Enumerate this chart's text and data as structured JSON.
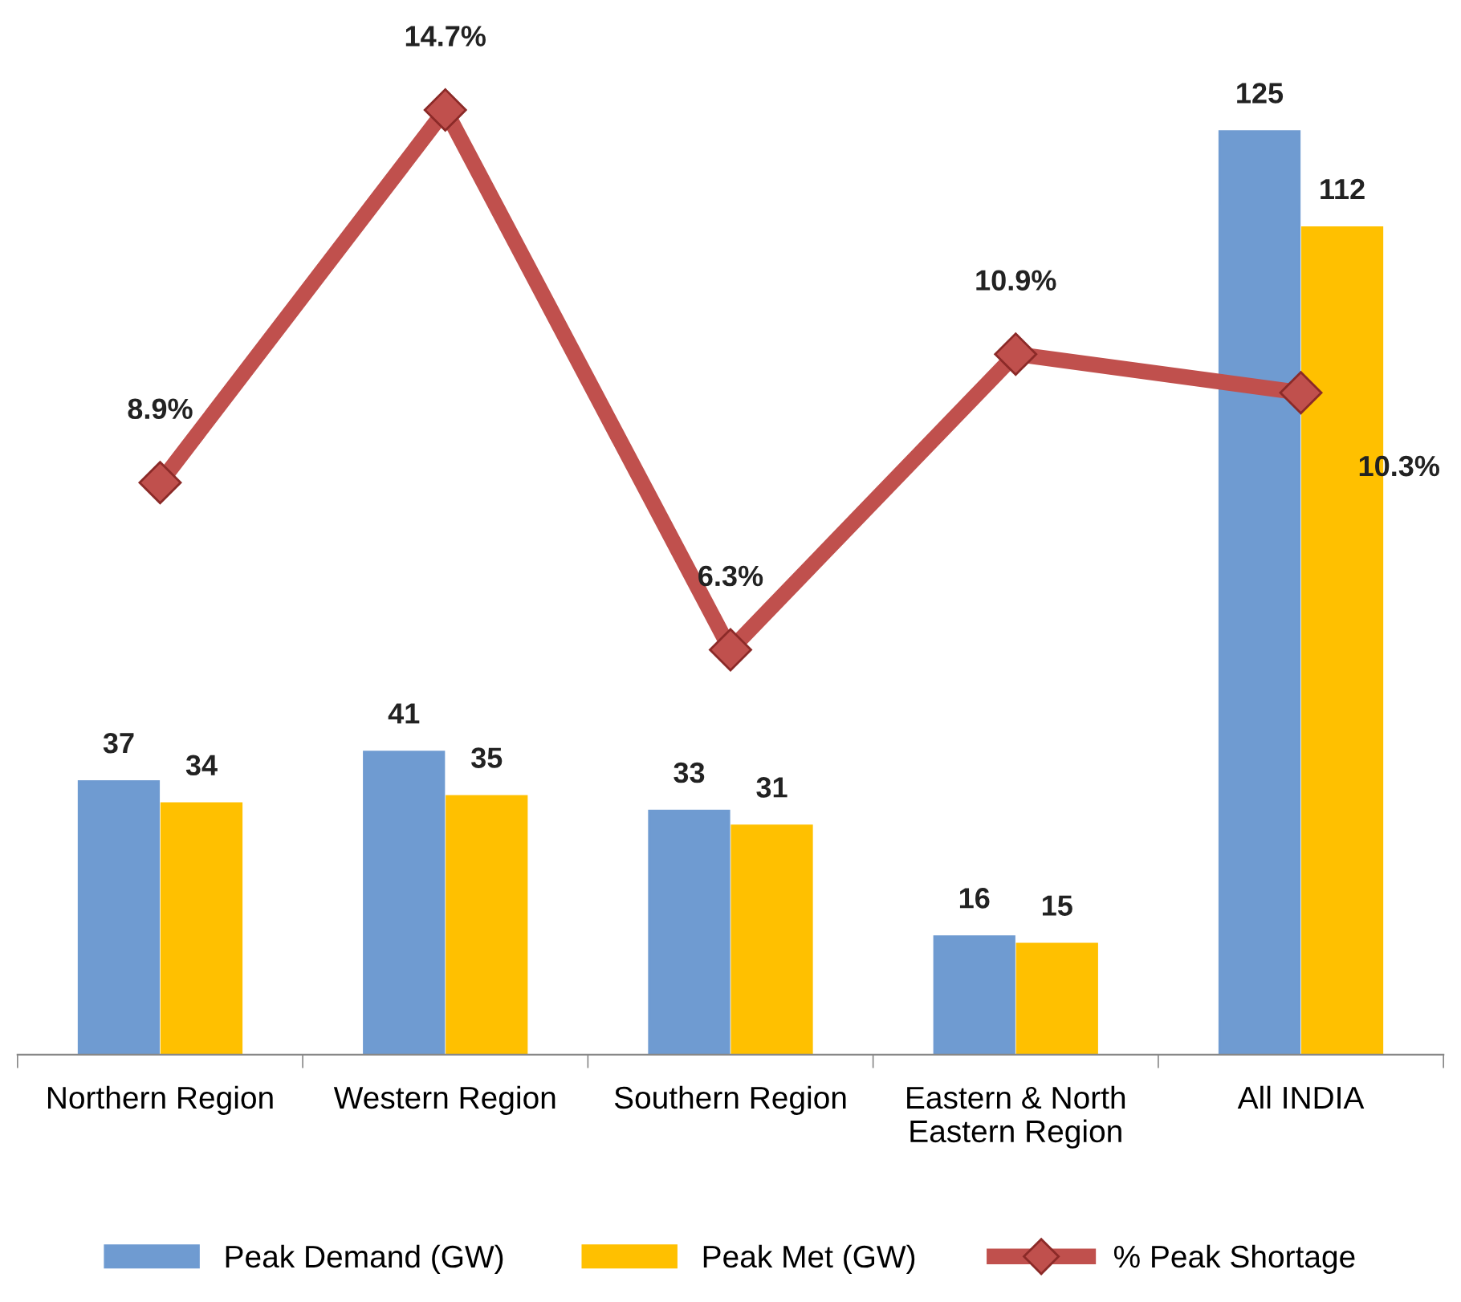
{
  "chart_data": {
    "type": "bar",
    "categories": [
      "Northern Region",
      "Western Region",
      "Southern Region",
      "Eastern & North Eastern Region",
      "All INDIA"
    ],
    "series": [
      {
        "name": "Peak Demand (GW)",
        "color": "#6f9bd1",
        "values": [
          37,
          41,
          33,
          16,
          125
        ]
      },
      {
        "name": "Peak Met (GW)",
        "color": "#ffc000",
        "values": [
          34,
          35,
          31,
          15,
          112
        ]
      },
      {
        "name": "% Peak Shortage",
        "color": "#c0504d",
        "type": "line",
        "axis": "y2",
        "marker": "diamond",
        "line_style": "solid",
        "values": [
          8.9,
          14.7,
          6.3,
          10.9,
          10.3
        ],
        "value_labels": [
          "8.9%",
          "14.7%",
          "6.3%",
          "10.9%",
          "10.3%"
        ]
      }
    ],
    "data_labels": true,
    "legend": "bottom",
    "tick_labels": "x"
  }
}
